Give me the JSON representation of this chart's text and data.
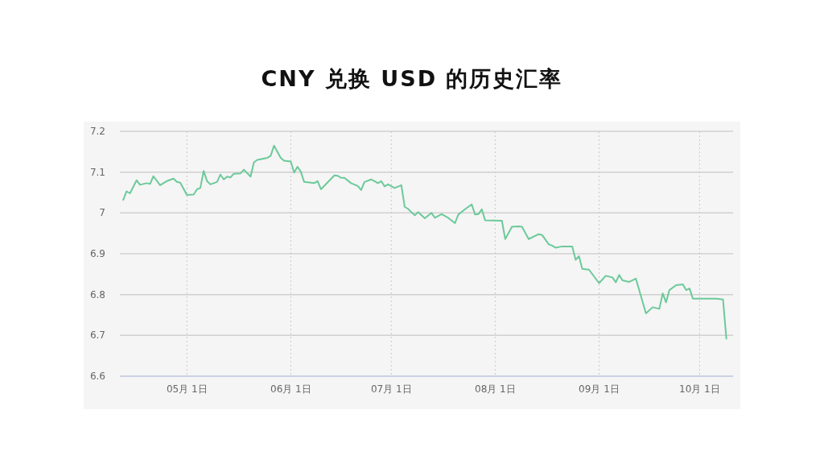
{
  "chart_data": {
    "type": "line",
    "title": "CNY 兑换 USD 的历史汇率",
    "x": [
      "--04-12",
      "--04-13",
      "--04-14",
      "--04-16",
      "--04-17",
      "--04-19",
      "--04-20",
      "--04-21",
      "--04-23",
      "--04-25",
      "--04-27",
      "--04-28",
      "--04-29",
      "--05-01",
      "--05-03",
      "--05-04",
      "--05-05",
      "--05-06",
      "--05-07",
      "--05-08",
      "--05-10",
      "--05-11",
      "--05-12",
      "--05-13",
      "--05-14",
      "--05-15",
      "--05-17",
      "--05-18",
      "--05-20",
      "--05-21",
      "--05-22",
      "--05-25",
      "--05-26",
      "--05-27",
      "--05-29",
      "--05-30",
      "--06-01",
      "--06-02",
      "--06-03",
      "--06-04",
      "--06-05",
      "--06-08",
      "--06-09",
      "--06-10",
      "--06-14",
      "--06-15",
      "--06-16",
      "--06-17",
      "--06-19",
      "--06-21",
      "--06-22",
      "--06-23",
      "--06-25",
      "--06-26",
      "--06-27",
      "--06-28",
      "--06-29",
      "--06-30",
      "--07-02",
      "--07-04",
      "--07-05",
      "--07-06",
      "--07-08",
      "--07-09",
      "--07-11",
      "--07-13",
      "--07-14",
      "--07-16",
      "--07-18",
      "--07-20",
      "--07-21",
      "--07-23",
      "--07-25",
      "--07-26",
      "--07-27",
      "--07-28",
      "--07-29",
      "--08-03",
      "--08-04",
      "--08-06",
      "--08-08",
      "--08-09",
      "--08-11",
      "--08-14",
      "--08-15",
      "--08-17",
      "--08-18",
      "--08-19",
      "--08-21",
      "--08-24",
      "--08-25",
      "--08-26",
      "--08-27",
      "--08-29",
      "--09-01",
      "--09-03",
      "--09-05",
      "--09-06",
      "--09-07",
      "--09-08",
      "--09-10",
      "--09-12",
      "--09-15",
      "--09-17",
      "--09-19",
      "--09-20",
      "--09-21",
      "--09-22",
      "--09-24",
      "--09-26",
      "--09-27",
      "--09-28",
      "--09-29",
      "--10-06",
      "--10-08",
      "--10-09"
    ],
    "series": [
      {
        "color": "#6cc99a",
        "values": [
          7.032,
          7.053,
          7.048,
          7.08,
          7.069,
          7.073,
          7.071,
          7.09,
          7.068,
          7.078,
          7.084,
          7.076,
          7.074,
          7.044,
          7.045,
          7.058,
          7.061,
          7.103,
          7.078,
          7.07,
          7.076,
          7.094,
          7.082,
          7.089,
          7.087,
          7.096,
          7.097,
          7.106,
          7.089,
          7.124,
          7.13,
          7.135,
          7.14,
          7.165,
          7.135,
          7.128,
          7.126,
          7.099,
          7.113,
          7.101,
          7.076,
          7.073,
          7.078,
          7.058,
          7.092,
          7.091,
          7.086,
          7.086,
          7.073,
          7.066,
          7.056,
          7.076,
          7.082,
          7.078,
          7.073,
          7.078,
          7.065,
          7.07,
          7.061,
          7.068,
          7.015,
          7.01,
          6.994,
          7.002,
          6.987,
          7.0,
          6.988,
          6.997,
          6.988,
          6.975,
          6.996,
          7.009,
          7.021,
          6.996,
          6.997,
          7.009,
          6.982,
          6.981,
          6.936,
          6.966,
          6.967,
          6.966,
          6.936,
          6.948,
          6.946,
          6.923,
          6.92,
          6.915,
          6.918,
          6.918,
          6.885,
          6.894,
          6.863,
          6.861,
          6.828,
          6.846,
          6.842,
          6.83,
          6.848,
          6.835,
          6.831,
          6.839,
          6.754,
          6.769,
          6.765,
          6.803,
          6.781,
          6.811,
          6.823,
          6.825,
          6.811,
          6.815,
          6.79,
          6.79,
          6.788,
          6.692
        ]
      }
    ],
    "xlim": [
      "--04-11",
      "--10-11"
    ],
    "xticks": [
      {
        "value": "--05-01",
        "label": "05月 1日"
      },
      {
        "value": "--06-01",
        "label": "06月 1日"
      },
      {
        "value": "--07-01",
        "label": "07月 1日"
      },
      {
        "value": "--08-01",
        "label": "08月 1日"
      },
      {
        "value": "--09-01",
        "label": "09月 1日"
      },
      {
        "value": "--10-01",
        "label": "10月 1日"
      }
    ],
    "ylim": [
      6.6,
      7.2
    ],
    "yticks": [
      6.6,
      6.7,
      6.8,
      6.9,
      7,
      7.1,
      7.2
    ],
    "grid": true,
    "marker": "none",
    "line_style": "solid"
  }
}
